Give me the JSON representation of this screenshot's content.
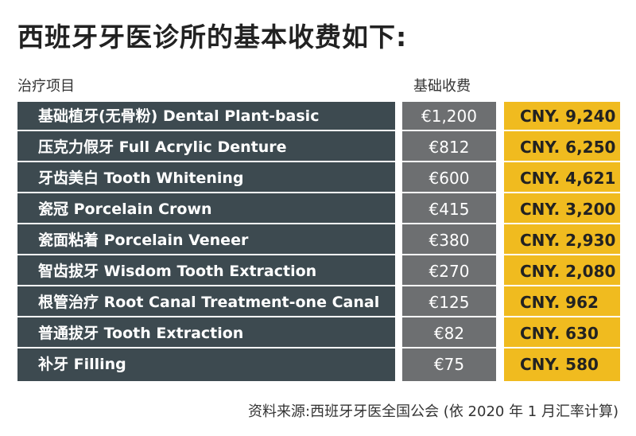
{
  "title": "西班牙牙医诊所的基本收费如下:",
  "headers": {
    "item": "治疗项目",
    "fee": "基础收费"
  },
  "rows": [
    {
      "name": "基础植牙(无骨粉) Dental Plant-basic",
      "eur": "€1,200",
      "cny": "CNY. 9,240"
    },
    {
      "name": "压克力假牙 Full Acrylic Denture",
      "eur": "€812",
      "cny": "CNY. 6,250"
    },
    {
      "name": "牙齿美白 Tooth Whitening",
      "eur": "€600",
      "cny": "CNY. 4,621"
    },
    {
      "name": "瓷冠 Porcelain Crown",
      "eur": "€415",
      "cny": "CNY. 3,200"
    },
    {
      "name": "瓷面粘着 Porcelain Veneer",
      "eur": "€380",
      "cny": "CNY. 2,930"
    },
    {
      "name": "智齿拔牙 Wisdom Tooth Extraction",
      "eur": "€270",
      "cny": "CNY. 2,080"
    },
    {
      "name": "根管治疗 Root Canal Treatment-one Canal",
      "eur": "€125",
      "cny": "CNY. 962"
    },
    {
      "name": "普通拔牙 Tooth Extraction",
      "eur": "€82",
      "cny": "CNY. 630"
    },
    {
      "name": "补牙 Filling",
      "eur": "€75",
      "cny": "CNY. 580"
    }
  ],
  "footer": "资料来源:西班牙牙医全国公会 (依 2020 年 1 月汇率计算)",
  "colors": {
    "name_col": "#3d4a50",
    "eur_col": "#6d6f71",
    "cny_col": "#f0bb1f"
  }
}
